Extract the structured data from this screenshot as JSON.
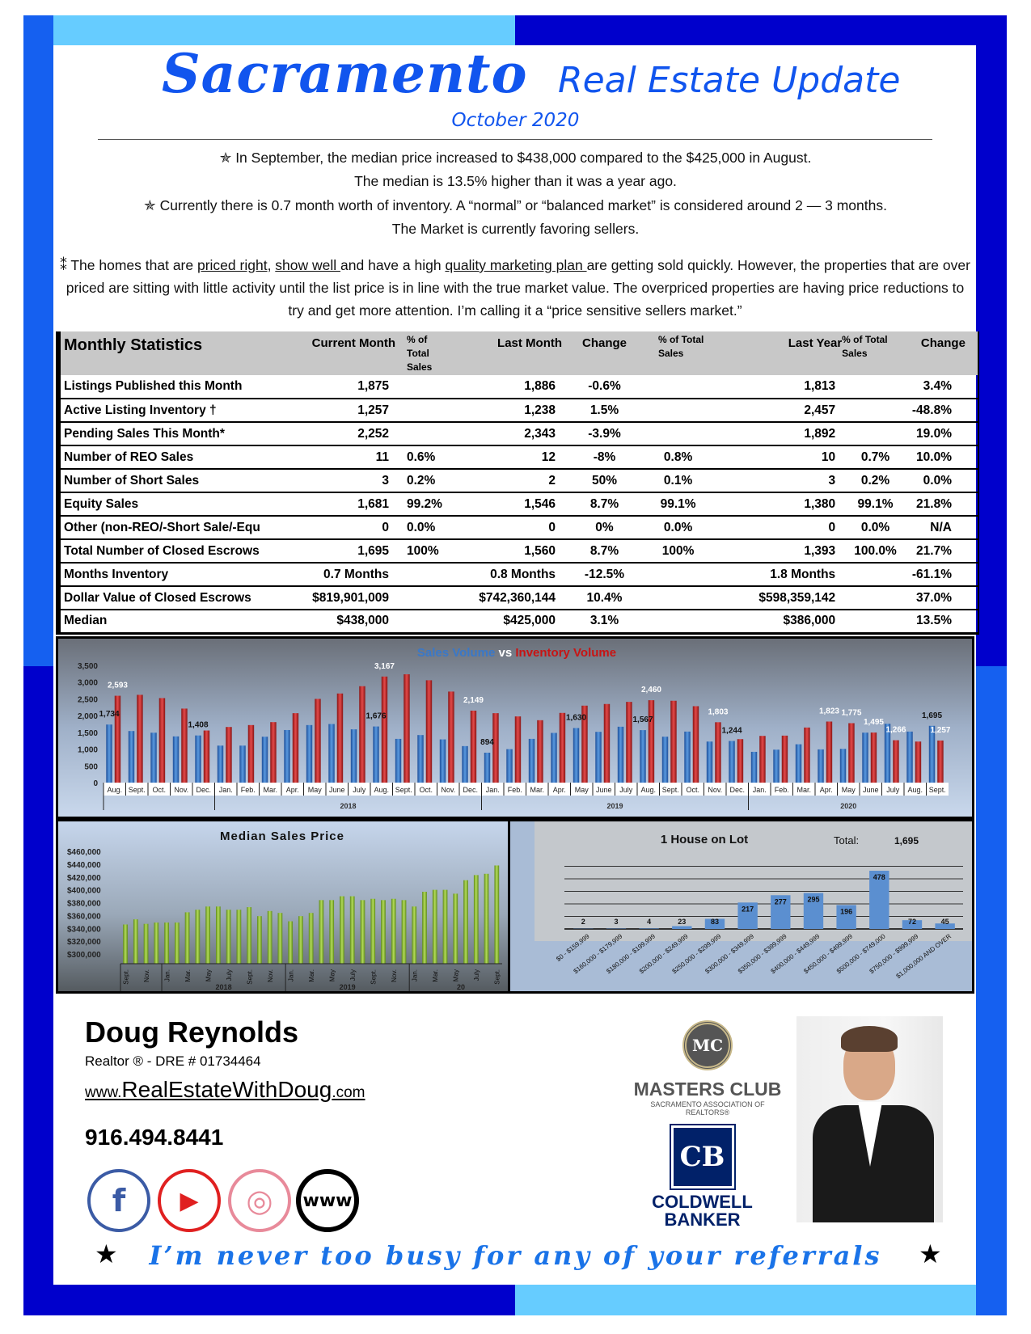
{
  "header": {
    "title_script": "Sacramento",
    "title_rest": "Real Estate Update",
    "date": "October 2020"
  },
  "colors": {
    "frame_dark": "#0000cc",
    "frame_bright": "#1560f0",
    "frame_light": "#66ccff",
    "title_blue": "#1155ee",
    "sales_blue": "#3a78c8",
    "inventory_red": "#d03030",
    "median_green": "#8fbf3a",
    "lot_blue": "#5b8fd0"
  },
  "intro": {
    "bullet_icon": "star-outline-icon",
    "line1": "In September, the median price increased to $438,000 compared to the $425,000 in August.",
    "line2": "The median is 13.5% higher than it was a year ago.",
    "line3": "Currently there is 0.7 month worth of inventory. A “normal” or “balanced market” is considered around 2 — 3 months.",
    "line4": "The Market is currently favoring sellers."
  },
  "paragraph": {
    "bullet": "⁑",
    "p1": "The homes that are ",
    "u1": "priced right",
    "p2": ", ",
    "u2": "show well ",
    "p3": "and have a high ",
    "u3": "quality marketing plan ",
    "p4": "are getting sold quickly.  However, the properties that are over priced are sitting with little activity until the list price is in line with the true market value.  The overpriced properties are having price reductions to try and get more attention. I’m calling it a “price sensitive sellers market.”"
  },
  "table": {
    "headers": [
      "Monthly Statistics",
      "Current Month",
      "% of Total Sales",
      "Last Month",
      "Change",
      "% of Total Sales",
      "Last Year",
      "% of  Total Sales",
      "Change"
    ],
    "rows": [
      [
        "Listings Published this Month",
        "1,875",
        "",
        "1,886",
        "-0.6%",
        "",
        "1,813",
        "",
        "3.4%"
      ],
      [
        "Active Listing Inventory †",
        "1,257",
        "",
        "1,238",
        "1.5%",
        "",
        "2,457",
        "",
        "-48.8%"
      ],
      [
        "Pending Sales This Month*",
        "2,252",
        "",
        "2,343",
        "-3.9%",
        "",
        "1,892",
        "",
        "19.0%"
      ],
      [
        "Number of REO Sales",
        "11",
        "0.6%",
        "12",
        "-8%",
        "0.8%",
        "10",
        "0.7%",
        "10.0%"
      ],
      [
        "Number of Short Sales",
        "3",
        "0.2%",
        "2",
        "50%",
        "0.1%",
        "3",
        "0.2%",
        "0.0%"
      ],
      [
        "Equity Sales",
        "1,681",
        "99.2%",
        "1,546",
        "8.7%",
        "99.1%",
        "1,380",
        "99.1%",
        "21.8%"
      ],
      [
        "Other (non-REO/-Short Sale/-Equ",
        "0",
        "0.0%",
        "0",
        "0%",
        "0.0%",
        "0",
        "0.0%",
        "N/A"
      ],
      [
        "Total Number of Closed Escrows",
        "1,695",
        "100%",
        "1,560",
        "8.7%",
        "100%",
        "1,393",
        "100.0%",
        "21.7%"
      ],
      [
        "Months Inventory",
        "0.7 Months",
        "",
        "0.8 Months",
        "-12.5%",
        "",
        "1.8 Months",
        "",
        "-61.1%"
      ],
      [
        "Dollar Value of Closed Escrows",
        "$819,901,009",
        "",
        "$742,360,144",
        "10.4%",
        "",
        "$598,359,142",
        "",
        "37.0%"
      ],
      [
        "Median",
        "$438,000",
        "",
        "$425,000",
        "3.1%",
        "",
        "$386,000",
        "",
        "13.5%"
      ]
    ]
  },
  "chart_data": [
    {
      "type": "bar",
      "title_part1": "Sales Volume",
      "title_vs": "vs",
      "title_part2": "Inventory Volume",
      "categories": [
        "Aug.",
        "Sept.",
        "Oct.",
        "Nov.",
        "Dec.",
        "Jan.",
        "Feb.",
        "Mar.",
        "Apr.",
        "May",
        "June",
        "July",
        "Aug.",
        "Sept.",
        "Oct.",
        "Nov.",
        "Dec.",
        "Jan.",
        "Feb.",
        "Mar.",
        "Apr.",
        "May",
        "June",
        "July",
        "Aug.",
        "Sept.",
        "Oct.",
        "Nov.",
        "Dec.",
        "Jan.",
        "Feb.",
        "Mar.",
        "Apr.",
        "May",
        "June",
        "July",
        "Aug.",
        "Sept."
      ],
      "year_groups": [
        {
          "label": "",
          "span": 5
        },
        {
          "label": "2018",
          "span": 12
        },
        {
          "label": "2019",
          "span": 12
        },
        {
          "label": "2020",
          "span": 9
        }
      ],
      "series": [
        {
          "name": "Sales Volume",
          "values": [
            1734,
            1540,
            1490,
            1380,
            1408,
            1105,
            1105,
            1370,
            1570,
            1718,
            1750,
            1590,
            1676,
            1306,
            1420,
            1290,
            1090,
            894,
            1000,
            1306,
            1484,
            1630,
            1516,
            1669,
            1567,
            1371,
            1524,
            1226,
            1244,
            919,
            984,
            1145,
            992,
            1008,
            1492,
            1758,
            1524,
            1695
          ]
        },
        {
          "name": "Inventory Volume",
          "values": [
            2593,
            2621,
            2524,
            2210,
            1556,
            1661,
            1718,
            1806,
            2073,
            2500,
            2661,
            2879,
            3167,
            3234,
            3056,
            2718,
            2149,
            2073,
            1976,
            1863,
            2081,
            2298,
            2347,
            2411,
            2460,
            2444,
            2282,
            1803,
            1298,
            1395,
            1403,
            1645,
            1823,
            1775,
            1495,
            1266,
            1226,
            1257
          ]
        }
      ],
      "data_labels": [
        {
          "series": 0,
          "index": 0,
          "text": "1,734"
        },
        {
          "series": 1,
          "index": 0,
          "text": "2,593"
        },
        {
          "series": 0,
          "index": 4,
          "text": "1,408"
        },
        {
          "series": 0,
          "index": 12,
          "text": "1,676"
        },
        {
          "series": 1,
          "index": 12,
          "text": "3,167"
        },
        {
          "series": 1,
          "index": 16,
          "text": "2,149"
        },
        {
          "series": 0,
          "index": 17,
          "text": "894"
        },
        {
          "series": 0,
          "index": 21,
          "text": "1,630"
        },
        {
          "series": 0,
          "index": 24,
          "text": "1,567"
        },
        {
          "series": 1,
          "index": 24,
          "text": "2,460"
        },
        {
          "series": 1,
          "index": 27,
          "text": "1,803"
        },
        {
          "series": 0,
          "index": 28,
          "text": "1,244"
        },
        {
          "series": 1,
          "index": 32,
          "text": "1,823"
        },
        {
          "series": 1,
          "index": 33,
          "text": "1,775"
        },
        {
          "series": 1,
          "index": 34,
          "text": "1,495"
        },
        {
          "series": 1,
          "index": 35,
          "text": "1,266"
        },
        {
          "series": 0,
          "index": 37,
          "text": "1,695"
        },
        {
          "series": 1,
          "index": 37,
          "text": "1,257"
        }
      ],
      "yticks": [
        "0",
        "500",
        "1,000",
        "1,500",
        "2,000",
        "2,500",
        "3,000",
        "3,500"
      ],
      "ylim": [
        0,
        3500
      ]
    },
    {
      "type": "bar",
      "title": "Median Sales Price",
      "values": [
        346000,
        354000,
        347000,
        349000,
        349000,
        349000,
        365000,
        369000,
        374000,
        374000,
        369000,
        369000,
        373000,
        359000,
        367000,
        364000,
        351000,
        359000,
        364000,
        384000,
        384000,
        390000,
        390000,
        384000,
        386000,
        384000,
        386000,
        384000,
        374000,
        397000,
        400000,
        400000,
        394000,
        415000,
        423000,
        425000,
        438000
      ],
      "tick_labels": [
        "Sept.",
        "Nov.",
        "Jan.",
        "Mar.",
        "May",
        "July",
        "Sept.",
        "Nov.",
        "Jan.",
        "Mar.",
        "May",
        "July",
        "Sept.",
        "Nov.",
        "Jan.",
        "Mar.",
        "May",
        "July",
        "Sept."
      ],
      "year_groups": [
        {
          "label": "",
          "span": 2
        },
        {
          "label": "2018",
          "span": 6
        },
        {
          "label": "2019",
          "span": 6
        },
        {
          "label": "20",
          "span": 5
        }
      ],
      "yticks": [
        "$300,000",
        "$320,000",
        "$340,000",
        "$360,000",
        "$380,000",
        "$400,000",
        "$420,000",
        "$440,000",
        "$460,000"
      ],
      "ylim": [
        300000,
        460000
      ]
    },
    {
      "type": "bar",
      "title": "1 House on Lot",
      "total_label": "Total:",
      "total_value": "1,695",
      "categories": [
        "$0 - $159,999",
        "$160,000 - $179,999",
        "$180,000 - $199,999",
        "$200,000 - $249,999",
        "$250,000 - $299,999",
        "$300,000 - $349,999",
        "$350,000 - $399,999",
        "$400,000 - $449,999",
        "$450,000 - $499,999",
        "$500,000 - $749,000",
        "$750,000 - $999,999",
        "$1,000,000 AND OVER"
      ],
      "values": [
        2,
        3,
        4,
        23,
        83,
        217,
        277,
        295,
        196,
        478,
        72,
        45
      ]
    }
  ],
  "footer": {
    "name": "Doug Reynolds",
    "title": "Realtor ®   -  DRE # 01734464",
    "web_prefix": "www.",
    "web_main": "RealEstateWithDoug",
    "web_suffix": ".com",
    "phone": "916.494.8441",
    "social": [
      {
        "icon": "facebook-icon",
        "glyph": "f",
        "color": "#3b5ba5"
      },
      {
        "icon": "youtube-icon",
        "glyph": "▶",
        "color": "#e02020"
      },
      {
        "icon": "instagram-icon",
        "glyph": "◎",
        "color": "#e88a9a"
      },
      {
        "icon": "www-globe-icon",
        "glyph": "www",
        "color": "#000"
      }
    ],
    "masters_club": "MASTERS CLUB",
    "masters_sub": "SACRAMENTO ASSOCIATION OF REALTORS®",
    "masters_monogram": "MC",
    "cb_monogram": "CB",
    "coldwell1": "COLDWELL",
    "coldwell2": "BANKER",
    "referral": "I’m never too busy for any of your referrals",
    "star": "★"
  }
}
